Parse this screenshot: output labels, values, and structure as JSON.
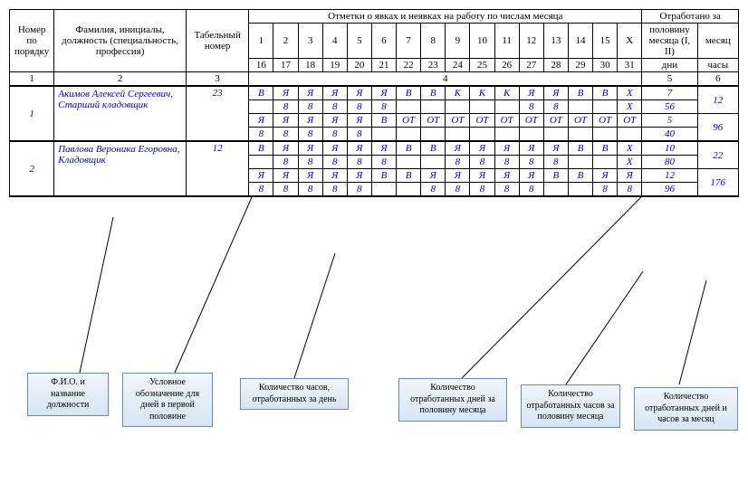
{
  "header": {
    "colA": "Номер по порядку",
    "colB": "Фамилия, инициалы, должность (специальность, профессия)",
    "colC": "Табельный номер",
    "colD": "Отметки о явках и неявках на работу по числам месяца",
    "colE": "Отработано за",
    "daysRow1": [
      "1",
      "2",
      "3",
      "4",
      "5",
      "6",
      "7",
      "8",
      "9",
      "10",
      "11",
      "12",
      "13",
      "14",
      "15",
      "X"
    ],
    "daysRow2": [
      "16",
      "17",
      "18",
      "19",
      "20",
      "21",
      "22",
      "23",
      "24",
      "25",
      "26",
      "27",
      "28",
      "29",
      "30",
      "31"
    ],
    "halfMonth": "половину месяца (I, II)",
    "month": "месяц",
    "days": "дни",
    "hours": "часы"
  },
  "numRow": {
    "c1": "1",
    "c2": "2",
    "c3": "3",
    "c4": "4",
    "c5": "5",
    "c6": "6"
  },
  "rows": [
    {
      "n": "1",
      "name": "Акимов Алексей Сергеевич, Старший кладовщик",
      "tab": "23",
      "lines": [
        {
          "d": [
            "В",
            "Я",
            "Я",
            "Я",
            "Я",
            "Я",
            "В",
            "В",
            "К",
            "К",
            "К",
            "Я",
            "Я",
            "В",
            "В",
            "Х"
          ],
          "half": "7",
          "mon": "12"
        },
        {
          "d": [
            "",
            "8",
            "8",
            "8",
            "8",
            "8",
            "",
            "",
            "",
            "",
            "",
            "8",
            "8",
            "",
            "",
            "Х"
          ],
          "half": "56",
          "mon": ""
        },
        {
          "d": [
            "Я",
            "Я",
            "Я",
            "Я",
            "Я",
            "В",
            "ОТ",
            "ОТ",
            "ОТ",
            "ОТ",
            "ОТ",
            "ОТ",
            "ОТ",
            "ОТ",
            "ОТ",
            "ОТ"
          ],
          "half": "5",
          "mon": "96"
        },
        {
          "d": [
            "8",
            "8",
            "8",
            "8",
            "8",
            "",
            "",
            "",
            "",
            "",
            "",
            "",
            "",
            "",
            "",
            ""
          ],
          "half": "40",
          "mon": ""
        }
      ]
    },
    {
      "n": "2",
      "name": "Павлова Вероника Егоровна, Кладовщик",
      "tab": "12",
      "lines": [
        {
          "d": [
            "В",
            "Я",
            "Я",
            "Я",
            "Я",
            "Я",
            "В",
            "В",
            "Я",
            "Я",
            "Я",
            "Я",
            "Я",
            "В",
            "В",
            "Х"
          ],
          "half": "10",
          "mon": "22"
        },
        {
          "d": [
            "",
            "8",
            "8",
            "8",
            "8",
            "8",
            "",
            "",
            "8",
            "8",
            "8",
            "8",
            "8",
            "",
            "",
            "Х"
          ],
          "half": "80",
          "mon": ""
        },
        {
          "d": [
            "Я",
            "Я",
            "Я",
            "Я",
            "Я",
            "В",
            "В",
            "Я",
            "Я",
            "Я",
            "Я",
            "Я",
            "В",
            "В",
            "Я",
            "Я"
          ],
          "half": "12",
          "mon": "176"
        },
        {
          "d": [
            "8",
            "8",
            "8",
            "8",
            "8",
            "",
            "",
            "8",
            "8",
            "8",
            "8",
            "8",
            "",
            "",
            "8",
            "8"
          ],
          "half": "96",
          "mon": ""
        }
      ]
    }
  ],
  "callouts": {
    "c1": "Ф.И.О. и название должности",
    "c2": "Условное обозначение для дней в первой половине",
    "c3": "Количество часов, отработанных за день",
    "c4": "Количество отработанных дней за половину месяца",
    "c5": "Количество отработанных часов за половину месяца",
    "c6": "Количество отработанных дней и часов за месяц"
  }
}
